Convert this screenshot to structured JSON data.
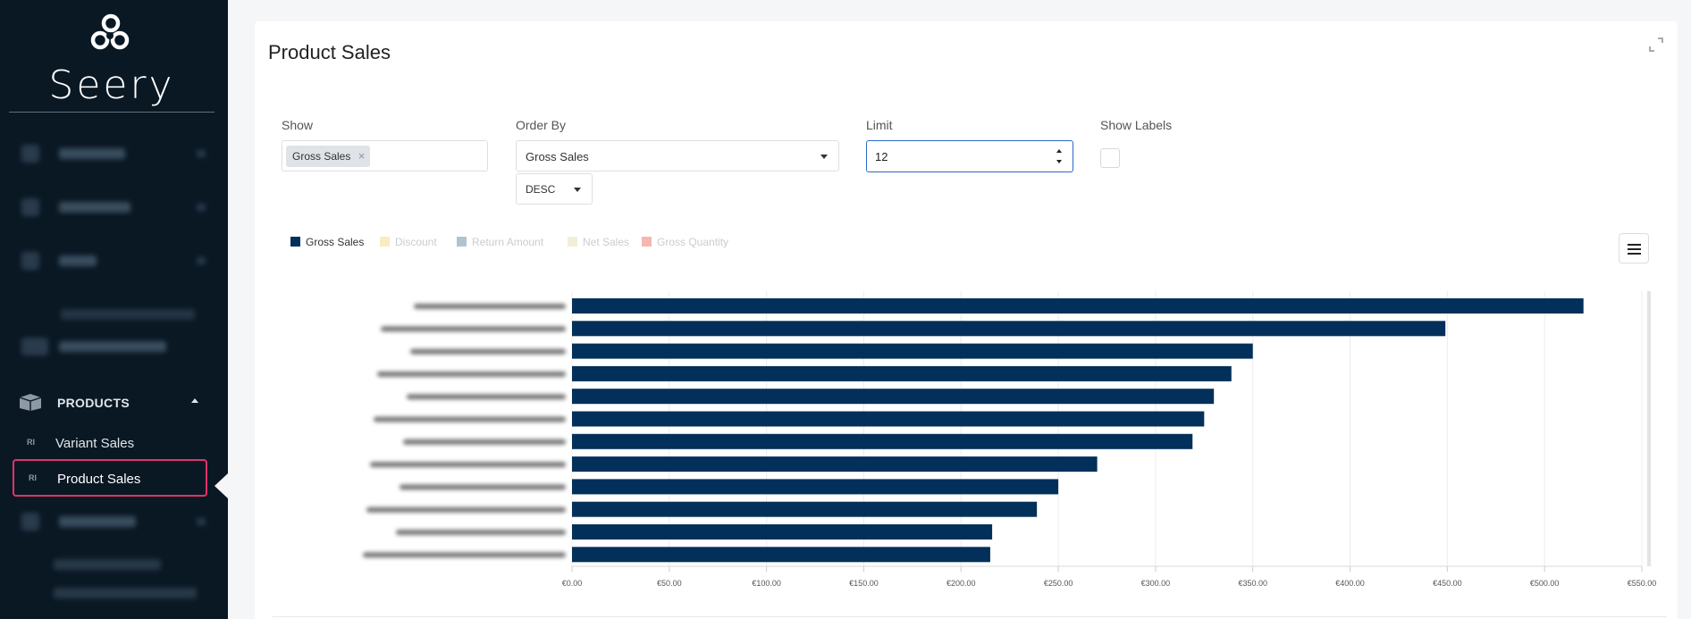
{
  "sidebar": {
    "logo_text": "Seery",
    "section": {
      "label": "PRODUCTS"
    },
    "items": [
      {
        "prefix": "RI",
        "label": "Variant Sales"
      },
      {
        "prefix": "RI",
        "label": "Product Sales"
      }
    ]
  },
  "main": {
    "title": "Product Sales",
    "controls": {
      "show": {
        "label": "Show",
        "chip": "Gross Sales",
        "chip_remove": "×"
      },
      "order_by": {
        "label": "Order By",
        "value": "Gross Sales",
        "direction": "DESC"
      },
      "limit": {
        "label": "Limit",
        "value": "12"
      },
      "show_labels": {
        "label": "Show Labels",
        "checked": false
      }
    }
  },
  "colors": {
    "gross_sales": "#03305a",
    "discount": "#f8ecc0",
    "return_amount": "#b2c3d0",
    "net_sales": "#f2efd9",
    "gross_quantity": "#f4b8b0"
  },
  "chart_data": {
    "type": "bar",
    "orientation": "horizontal",
    "legend": [
      "Gross Sales",
      "Discount",
      "Return Amount",
      "Net Sales",
      "Gross Quantity"
    ],
    "legend_active": [
      true,
      false,
      false,
      false,
      false
    ],
    "series": [
      {
        "name": "Gross Sales",
        "values": [
          520,
          449,
          350,
          339,
          330,
          325,
          319,
          270,
          250,
          239,
          216,
          215
        ]
      }
    ],
    "xlim": [
      0,
      550
    ],
    "xticks": [
      "€0.00",
      "€50.00",
      "€100.00",
      "€150.00",
      "€200.00",
      "€250.00",
      "€300.00",
      "€350.00",
      "€400.00",
      "€450.00",
      "€500.00",
      "€550.00"
    ]
  }
}
